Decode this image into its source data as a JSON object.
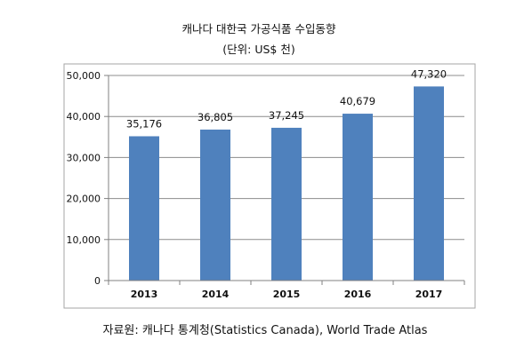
{
  "chart_data": {
    "type": "bar",
    "title": "캐나다 대한국 가공식품 수입동향",
    "subtitle": "(단위: US$ 천)",
    "categories": [
      "2013",
      "2014",
      "2015",
      "2016",
      "2017"
    ],
    "values": [
      35176,
      36805,
      37245,
      40679,
      47320
    ],
    "data_labels": [
      "35,176",
      "36,805",
      "37,245",
      "40,679",
      "47,320"
    ],
    "y_ticks": [
      0,
      10000,
      20000,
      30000,
      40000,
      50000
    ],
    "y_tick_labels": [
      "0",
      "10,000",
      "20,000",
      "30,000",
      "40,000",
      "50,000"
    ],
    "ylim": [
      0,
      50000
    ],
    "grid": true,
    "legend": "none",
    "bar_color": "#4F81BD",
    "source": "자료원: 캐나다 통계청(Statistics Canada), World Trade Atlas"
  }
}
